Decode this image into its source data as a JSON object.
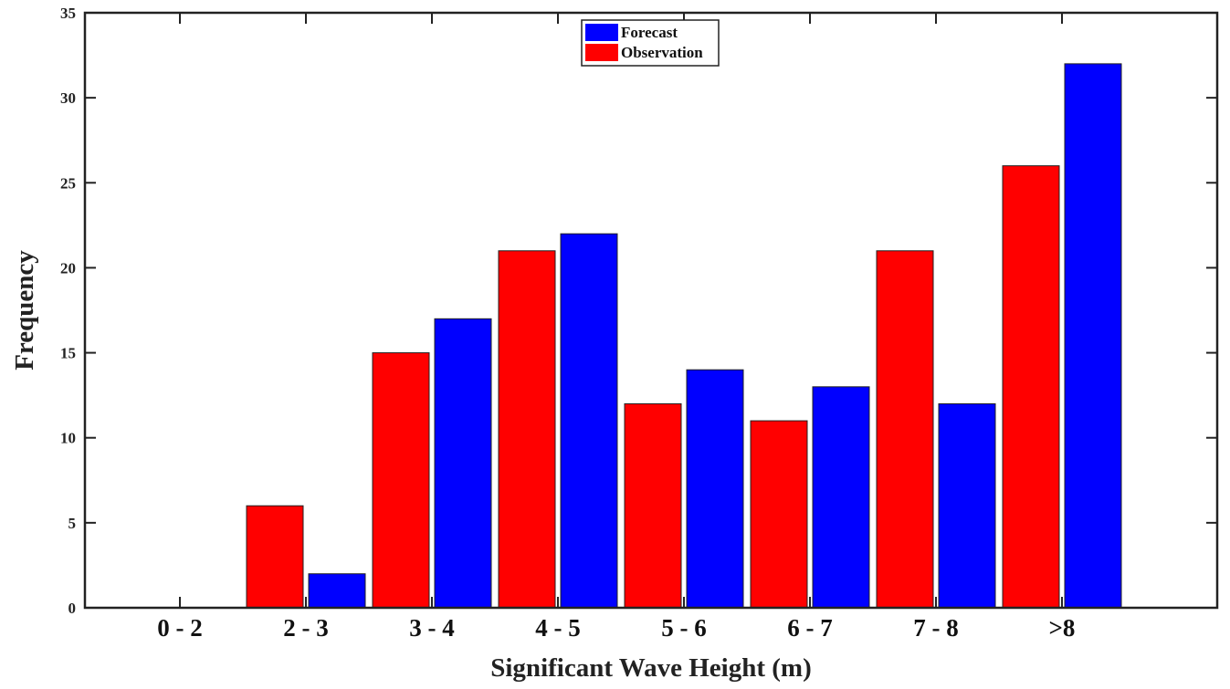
{
  "chart_data": {
    "type": "bar",
    "title": "",
    "xlabel": "Significant Wave Height (m)",
    "ylabel": "Frequency",
    "categories": [
      "0 - 2",
      "2 - 3",
      "3 - 4",
      "4 - 5",
      "5 - 6",
      "6 - 7",
      "7 - 8",
      ">8"
    ],
    "series": [
      {
        "name": "Observation",
        "color": "#ff0000",
        "values": [
          0,
          6,
          15,
          21,
          12,
          11,
          21,
          26
        ]
      },
      {
        "name": "Forecast",
        "color": "#0000ff",
        "values": [
          0,
          2,
          17,
          22,
          14,
          13,
          12,
          32
        ]
      }
    ],
    "ylim": [
      0,
      35
    ],
    "yticks": [
      0,
      5,
      10,
      15,
      20,
      25,
      30,
      35
    ],
    "grid": false,
    "legend": {
      "position": "top-center",
      "entries": [
        {
          "label": "Forecast",
          "color": "#0000ff"
        },
        {
          "label": "Observation",
          "color": "#ff0000"
        }
      ]
    }
  }
}
